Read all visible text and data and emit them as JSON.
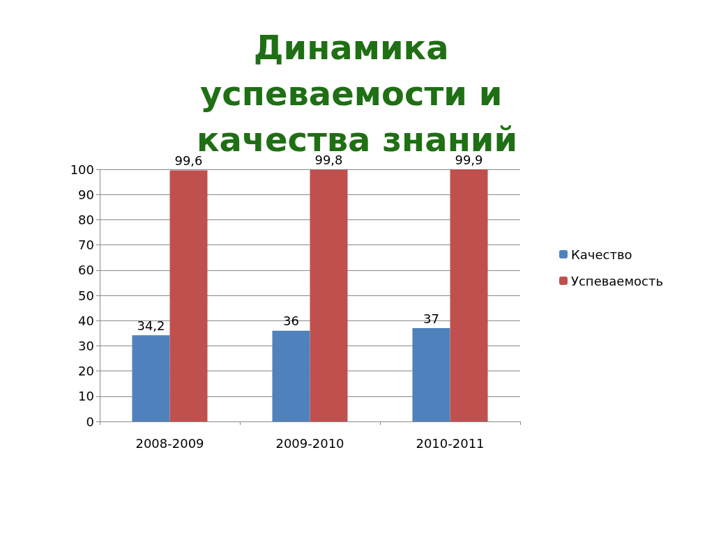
{
  "chart_data": {
    "type": "bar",
    "title": "Динамика успеваемости и качества знаний",
    "categories": [
      "2008-2009",
      "2009-2010",
      "2010-2011"
    ],
    "series": [
      {
        "name": "Качество",
        "color": "#4f81bd",
        "values": [
          34.2,
          36,
          37
        ],
        "value_labels": [
          "34,2",
          "36",
          "37"
        ]
      },
      {
        "name": "Успеваемость",
        "color": "#c0504d",
        "values": [
          99.6,
          99.8,
          99.9
        ],
        "value_labels": [
          "99,6",
          "99,8",
          "99,9"
        ]
      }
    ],
    "ylim": [
      0,
      100
    ],
    "yticks": [
      0,
      10,
      20,
      30,
      40,
      50,
      60,
      70,
      80,
      90,
      100
    ],
    "grid": "y",
    "legend": "right"
  }
}
